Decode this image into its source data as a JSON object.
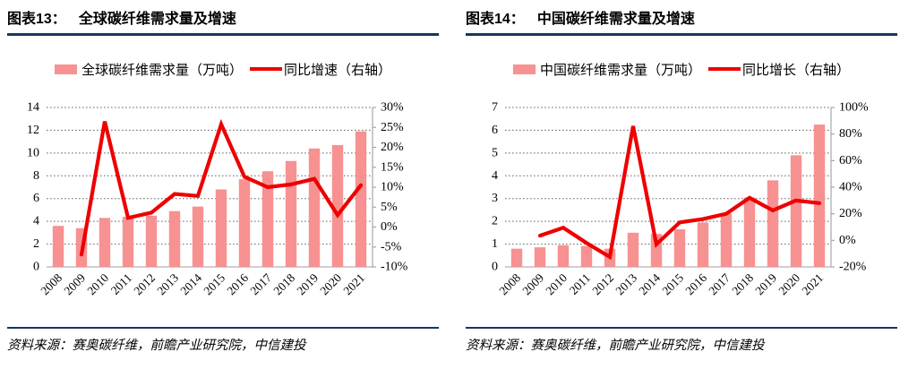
{
  "colors": {
    "bar": "#F89191",
    "line": "#EE0000",
    "rule": "#17375D",
    "grid": "#666666",
    "baseline": "#D0CECE",
    "spine": "#A6A6A6"
  },
  "chart_data": [
    {
      "type": "bar+line",
      "figure_label": "图表13：",
      "title": "全球碳纤维需求量及增速",
      "source": "资料来源：赛奥碳纤维，前瞻产业研究院，中信建投",
      "categories": [
        "2008",
        "2009",
        "2010",
        "2011",
        "2012",
        "2013",
        "2014",
        "2015",
        "2016",
        "2017",
        "2018",
        "2019",
        "2020",
        "2021"
      ],
      "series": [
        {
          "name": "全球碳纤维需求量（万吨）",
          "type": "bar",
          "axis": "left",
          "values": [
            3.6,
            3.4,
            4.3,
            4.4,
            4.5,
            4.9,
            5.3,
            6.8,
            7.7,
            8.4,
            9.3,
            10.4,
            10.7,
            11.9
          ]
        },
        {
          "name": "同比增速（右轴）",
          "type": "line",
          "axis": "right",
          "values": [
            null,
            -6.9,
            26.5,
            2.3,
            3.6,
            8.3,
            7.8,
            25.8,
            12.6,
            10.0,
            10.7,
            12.1,
            3.0,
            10.5
          ]
        }
      ],
      "left_axis": {
        "min": 0,
        "max": 14,
        "step": 2
      },
      "right_axis": {
        "min": -10,
        "max": 30,
        "step": 5,
        "suffix": "%"
      },
      "grid": "dotted-horizontal",
      "legend_position": "top-center"
    },
    {
      "type": "bar+line",
      "figure_label": "图表14：",
      "title": "中国碳纤维需求量及增速",
      "source": "资料来源：赛奥碳纤维，前瞻产业研究院，中信建投",
      "categories": [
        "2008",
        "2009",
        "2010",
        "2011",
        "2012",
        "2013",
        "2014",
        "2015",
        "2016",
        "2017",
        "2018",
        "2019",
        "2020",
        "2021"
      ],
      "series": [
        {
          "name": "中国碳纤维需求量（万吨）",
          "type": "bar",
          "axis": "left",
          "values": [
            0.8,
            0.86,
            0.95,
            0.92,
            0.8,
            1.5,
            1.45,
            1.65,
            1.95,
            2.35,
            3.05,
            3.8,
            4.9,
            6.25
          ]
        },
        {
          "name": "同比增长（右轴）",
          "type": "line",
          "axis": "right",
          "values": [
            null,
            3.5,
            9.5,
            -2,
            -12.5,
            86,
            -3,
            13.5,
            16,
            20,
            32,
            22.5,
            30,
            28
          ]
        }
      ],
      "left_axis": {
        "min": 0,
        "max": 7,
        "step": 1
      },
      "right_axis": {
        "min": -20,
        "max": 100,
        "step": 20,
        "suffix": "%"
      },
      "grid": "dotted-horizontal",
      "legend_position": "top-center"
    }
  ]
}
